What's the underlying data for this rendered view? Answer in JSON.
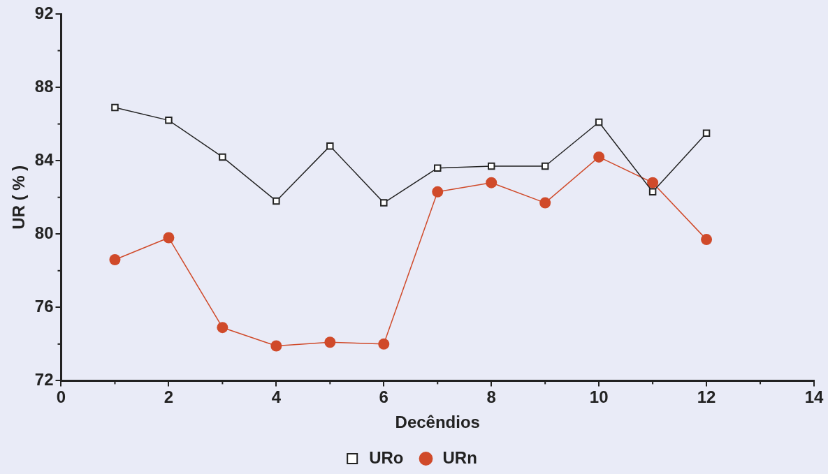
{
  "chart_data": {
    "type": "line",
    "xlabel": "Decêndios",
    "ylabel": "UR ( % )",
    "x": [
      1,
      2,
      3,
      4,
      5,
      6,
      7,
      8,
      9,
      10,
      11,
      12
    ],
    "series": [
      {
        "name": "URo",
        "color": "#222222",
        "marker": "square",
        "values": [
          86.9,
          86.2,
          84.2,
          81.8,
          84.8,
          81.7,
          83.6,
          83.7,
          83.7,
          86.1,
          82.3,
          85.5
        ]
      },
      {
        "name": "URn",
        "color": "#d04a2a",
        "marker": "circle",
        "values": [
          78.6,
          79.8,
          74.9,
          73.9,
          74.1,
          74.0,
          82.3,
          82.8,
          81.7,
          84.2,
          82.8,
          79.7
        ]
      }
    ],
    "xlim": [
      0,
      14
    ],
    "xticks": [
      0,
      2,
      4,
      6,
      8,
      10,
      12,
      14
    ],
    "ylim": [
      72,
      92
    ],
    "yticks": [
      72,
      76,
      80,
      84,
      88,
      92
    ],
    "grid": false,
    "legend": "bottom",
    "line_style": "solid"
  }
}
